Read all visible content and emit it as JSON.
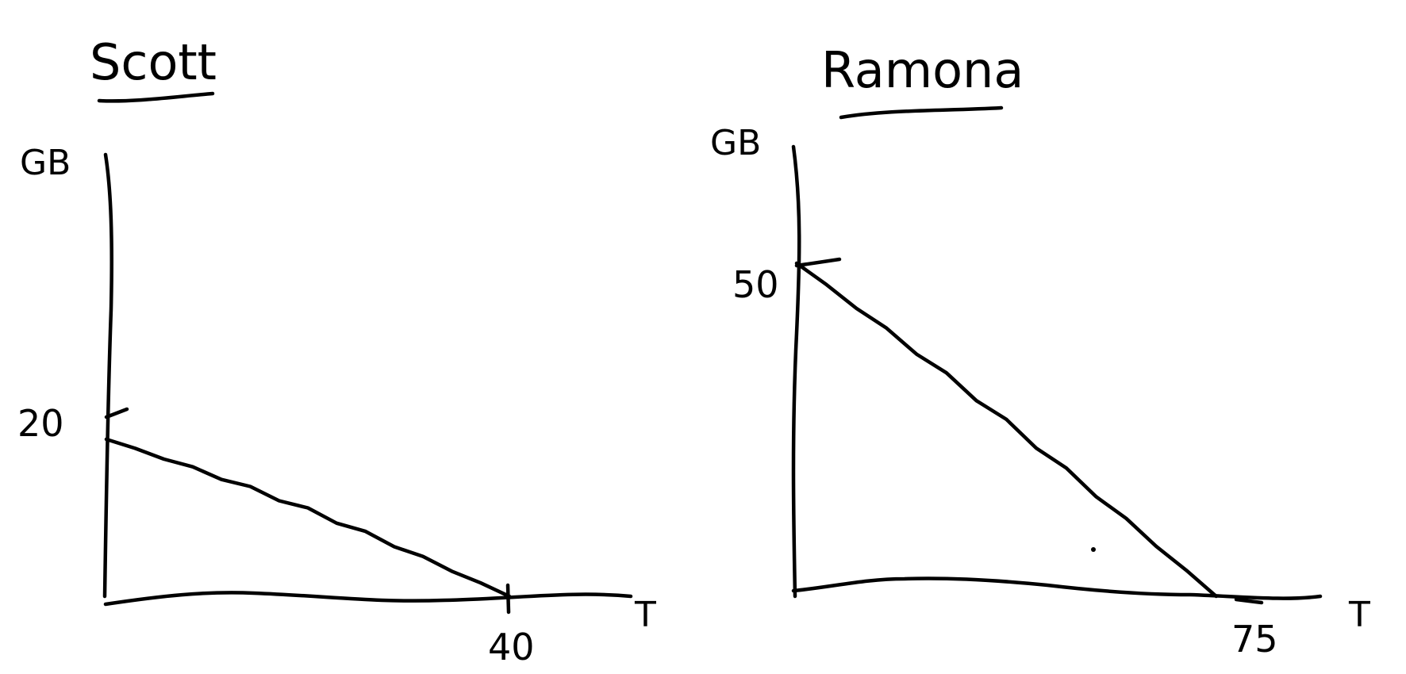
{
  "chart_data": [
    {
      "type": "line",
      "title": "Scott",
      "ylabel": "GB",
      "xlabel": "T",
      "x": [
        0,
        40
      ],
      "y": [
        20,
        0
      ],
      "x_ticks": [
        "40"
      ],
      "y_ticks": [
        "20"
      ],
      "xlim": [
        0,
        55
      ],
      "ylim": [
        0,
        44
      ],
      "grid": false
    },
    {
      "type": "line",
      "title": "Ramona",
      "ylabel": "GB",
      "xlabel": "T",
      "x": [
        0,
        75
      ],
      "y": [
        50,
        0
      ],
      "x_ticks": [
        "75"
      ],
      "y_ticks": [
        "50"
      ],
      "xlim": [
        0,
        85
      ],
      "ylim": [
        0,
        70
      ],
      "grid": false
    }
  ]
}
